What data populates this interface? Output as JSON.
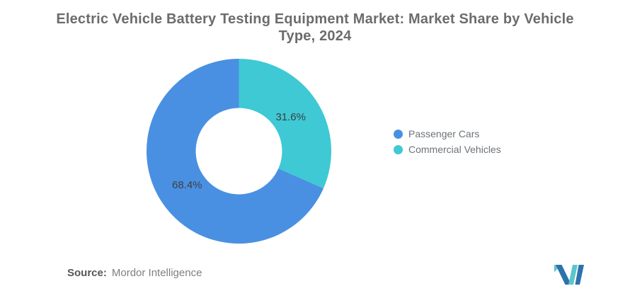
{
  "title": {
    "line1": "Electric Vehicle Battery Testing Equipment Market: Market Share by Vehicle",
    "line2": "Type, 2024",
    "full": "Electric Vehicle Battery Testing Equipment Market: Market Share by Vehicle Type, 2024"
  },
  "chart_data": {
    "type": "pie",
    "subtype": "donut",
    "title": "Electric Vehicle Battery Testing Equipment Market: Market Share by Vehicle Type, 2024",
    "start_angle_deg": 0,
    "direction": "clockwise",
    "inner_radius_ratio": 0.467,
    "segments": [
      {
        "label": "Commercial Vehicles",
        "value": 31.6,
        "data_label": "31.6%",
        "color": "#3EC9D4"
      },
      {
        "label": "Passenger Cars",
        "value": 68.4,
        "data_label": "68.4%",
        "color": "#4A90E2"
      }
    ],
    "legend": [
      {
        "label": "Passenger Cars",
        "color": "#4A90E2"
      },
      {
        "label": "Commercial Vehicles",
        "color": "#3EC9D4"
      }
    ],
    "legend_position": "right"
  },
  "source": {
    "prefix": "Source:",
    "text": "Mordor Intelligence"
  },
  "logo": {
    "name": "mordor-intelligence-logo",
    "teal": "#5BC6CC",
    "blue": "#2D72AD"
  },
  "colors": {
    "background": "#FFFFFF",
    "title_text": "#6C6C6C",
    "slice_label_text": "#3D4043",
    "legend_text": "#6D7378",
    "source_prefix_text": "#565656",
    "source_text": "#7F7F7F"
  }
}
